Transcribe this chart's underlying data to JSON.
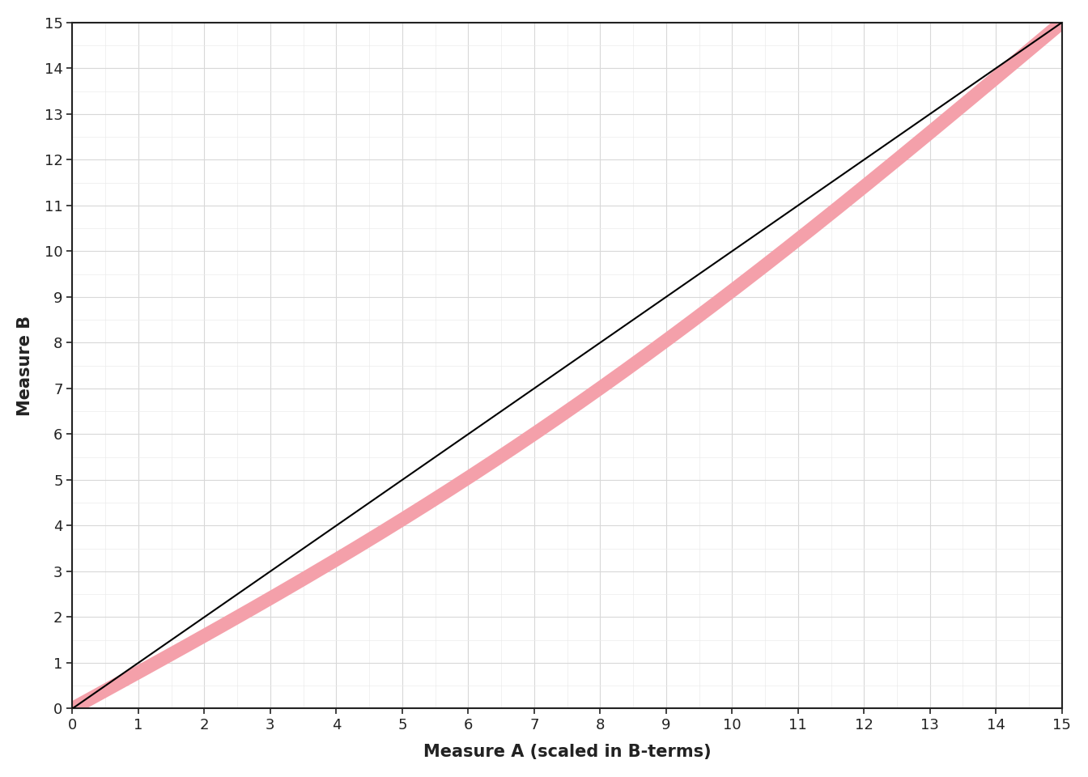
{
  "xlabel": "Measure A (scaled in B-terms)",
  "ylabel": "Measure B",
  "xlim": [
    0,
    15
  ],
  "ylim": [
    0,
    15
  ],
  "xticks": [
    1,
    2,
    3,
    4,
    5,
    6,
    7,
    8,
    9,
    10,
    11,
    12,
    13,
    14,
    15
  ],
  "yticks": [
    1,
    2,
    3,
    4,
    5,
    6,
    7,
    8,
    9,
    10,
    11,
    12,
    13,
    14,
    15
  ],
  "black_line_color": "#000000",
  "pink_line_color": "#f4a0aa",
  "background_color": "#ffffff",
  "plot_bg_color": "#ffffff",
  "major_grid_color": "#d8d8d8",
  "minor_grid_color": "#ebebeb",
  "axis_label_fontsize": 15,
  "tick_label_fontsize": 13,
  "tick_label_color": "#222222",
  "axis_label_color": "#222222",
  "pink_linewidth": 12,
  "black_linewidth": 1.5,
  "spine_color": "#222222",
  "spine_linewidth": 1.5
}
